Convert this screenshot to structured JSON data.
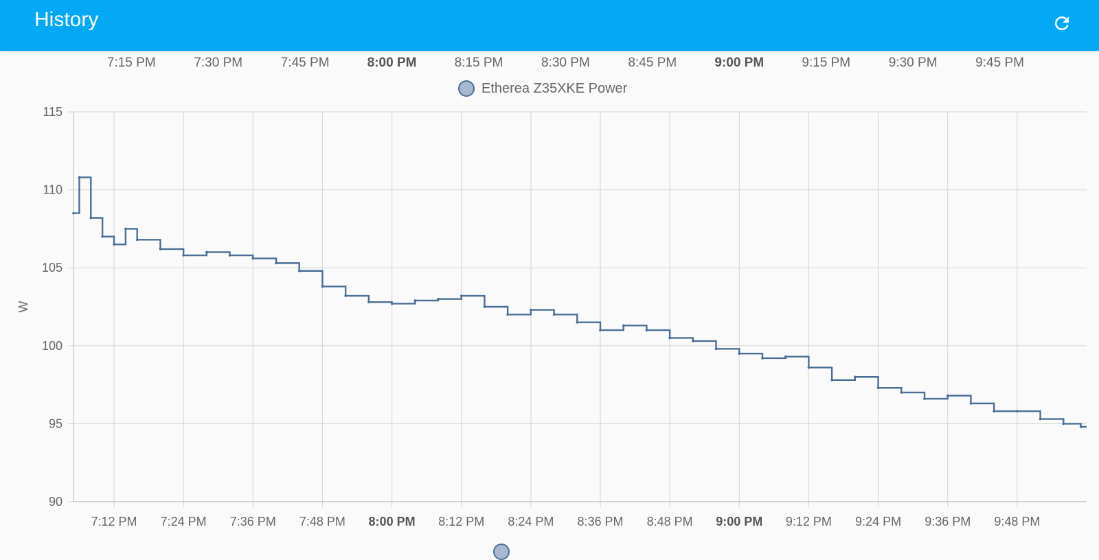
{
  "header": {
    "title": "History",
    "refresh_icon": "refresh-icon",
    "background": "#03a9f4"
  },
  "timeline": {
    "ticks": [
      {
        "label": "7:15 PM",
        "bold": false
      },
      {
        "label": "7:30 PM",
        "bold": false
      },
      {
        "label": "7:45 PM",
        "bold": false
      },
      {
        "label": "8:00 PM",
        "bold": true
      },
      {
        "label": "8:15 PM",
        "bold": false
      },
      {
        "label": "8:30 PM",
        "bold": false
      },
      {
        "label": "8:45 PM",
        "bold": false
      },
      {
        "label": "9:00 PM",
        "bold": true
      },
      {
        "label": "9:15 PM",
        "bold": false
      },
      {
        "label": "9:30 PM",
        "bold": false
      },
      {
        "label": "9:45 PM",
        "bold": false
      }
    ]
  },
  "chart_data": {
    "type": "line",
    "step": true,
    "title": "",
    "xlabel": "",
    "ylabel": "W",
    "ylim": [
      90,
      115
    ],
    "yticks": [
      90,
      95,
      100,
      105,
      110,
      115
    ],
    "xlim": [
      "7:05 PM",
      "10:00 PM"
    ],
    "xticks": [
      {
        "label": "7:12 PM",
        "bold": false
      },
      {
        "label": "7:24 PM",
        "bold": false
      },
      {
        "label": "7:36 PM",
        "bold": false
      },
      {
        "label": "7:48 PM",
        "bold": false
      },
      {
        "label": "8:00 PM",
        "bold": true
      },
      {
        "label": "8:12 PM",
        "bold": false
      },
      {
        "label": "8:24 PM",
        "bold": false
      },
      {
        "label": "8:36 PM",
        "bold": false
      },
      {
        "label": "8:48 PM",
        "bold": false
      },
      {
        "label": "9:00 PM",
        "bold": true
      },
      {
        "label": "9:12 PM",
        "bold": false
      },
      {
        "label": "9:24 PM",
        "bold": false
      },
      {
        "label": "9:36 PM",
        "bold": false
      },
      {
        "label": "9:48 PM",
        "bold": false
      }
    ],
    "grid": true,
    "legend_position": "top",
    "series": [
      {
        "name": "Etherea Z35XKE Power",
        "color": "#4a6f96",
        "fill": "#a7b9d0",
        "x": [
          "7:05 PM",
          "7:06 PM",
          "7:08 PM",
          "7:10 PM",
          "7:12 PM",
          "7:14 PM",
          "7:16 PM",
          "7:20 PM",
          "7:24 PM",
          "7:28 PM",
          "7:32 PM",
          "7:36 PM",
          "7:40 PM",
          "7:44 PM",
          "7:48 PM",
          "7:52 PM",
          "7:56 PM",
          "8:00 PM",
          "8:04 PM",
          "8:08 PM",
          "8:12 PM",
          "8:16 PM",
          "8:20 PM",
          "8:24 PM",
          "8:28 PM",
          "8:32 PM",
          "8:36 PM",
          "8:40 PM",
          "8:44 PM",
          "8:48 PM",
          "8:52 PM",
          "8:56 PM",
          "9:00 PM",
          "9:04 PM",
          "9:08 PM",
          "9:12 PM",
          "9:16 PM",
          "9:20 PM",
          "9:24 PM",
          "9:28 PM",
          "9:32 PM",
          "9:36 PM",
          "9:40 PM",
          "9:44 PM",
          "9:48 PM",
          "9:52 PM",
          "9:56 PM",
          "9:59 PM"
        ],
        "y": [
          108.5,
          110.8,
          108.2,
          107.0,
          106.5,
          107.5,
          106.8,
          106.2,
          105.8,
          106.0,
          105.8,
          105.6,
          105.3,
          104.8,
          103.8,
          103.2,
          102.8,
          102.7,
          102.9,
          103.0,
          103.2,
          102.5,
          102.0,
          102.3,
          102.0,
          101.5,
          101.0,
          101.3,
          101.0,
          100.5,
          100.3,
          99.8,
          99.5,
          99.2,
          99.3,
          98.6,
          97.8,
          98.0,
          97.3,
          97.0,
          96.6,
          96.8,
          96.3,
          95.8,
          95.8,
          95.3,
          95.0,
          94.8
        ]
      }
    ]
  }
}
